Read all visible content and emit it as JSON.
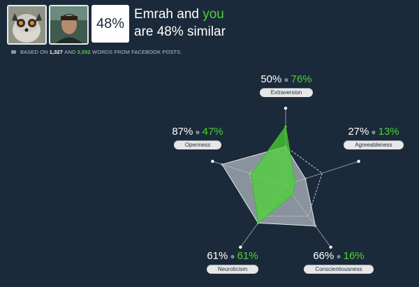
{
  "header": {
    "similarity_percent": "48%",
    "line1_name": "Emrah",
    "line1_and": "and",
    "line1_you": "you",
    "line2": "are 48% similar"
  },
  "basis": {
    "prefix": "BASED ON",
    "count_a": "1,327",
    "and": "AND",
    "count_b": "3,552",
    "suffix": "WORDS FROM FACEBOOK POSTS."
  },
  "traits": [
    {
      "label": "Extraversion",
      "a": "50%",
      "b": "76%"
    },
    {
      "label": "Agreeableness",
      "a": "27%",
      "b": "13%"
    },
    {
      "label": "Conscientiousness",
      "a": "66%",
      "b": "16%"
    },
    {
      "label": "Neuroticism",
      "a": "61%",
      "b": "61%"
    },
    {
      "label": "Openness",
      "a": "87%",
      "b": "47%"
    }
  ],
  "chart_data": {
    "type": "radar",
    "axes": [
      "Extraversion",
      "Agreeableness",
      "Conscientiousness",
      "Neuroticism",
      "Openness"
    ],
    "series": [
      {
        "values": [
          50,
          27,
          66,
          61,
          87
        ]
      },
      {
        "values": [
          76,
          13,
          16,
          61,
          47
        ]
      }
    ],
    "range": [
      0,
      100
    ],
    "colors": {
      "a": "#b5bcc4",
      "b": "#4cd137"
    }
  }
}
